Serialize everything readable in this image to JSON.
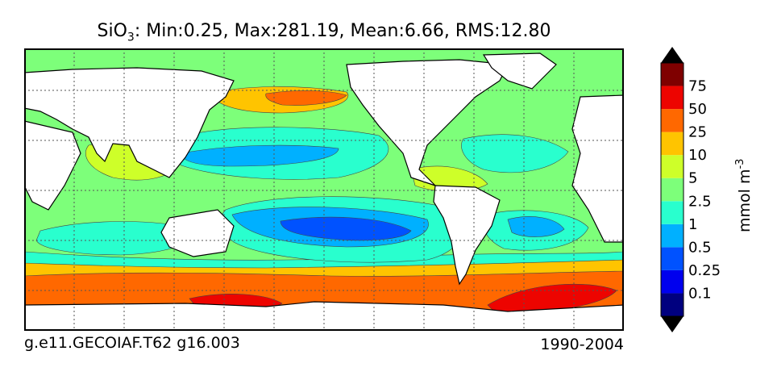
{
  "title": {
    "species": "SiO",
    "subscript": "3",
    "stats": ": Min:0.25, Max:281.19, Mean:6.66, RMS:12.80"
  },
  "footer": {
    "run": "g.e11.GECOIAF.T62 g16.003",
    "period": "1990-2004"
  },
  "colorbar": {
    "unit_base": "mmol m",
    "unit_exp": "-3",
    "levels": [
      "0.1",
      "0.25",
      "0.5",
      "1",
      "2.5",
      "5",
      "10",
      "25",
      "50",
      "75"
    ],
    "colors": [
      "#00007f",
      "#0000ee",
      "#0052ff",
      "#00b0ff",
      "#29ffce",
      "#7dff7a",
      "#ceff29",
      "#ffc400",
      "#ff6800",
      "#ed0400",
      "#7f0000"
    ],
    "extend": "both"
  },
  "map": {
    "projection": "equirectangular",
    "grid": true,
    "land_color": "#ffffff"
  }
}
